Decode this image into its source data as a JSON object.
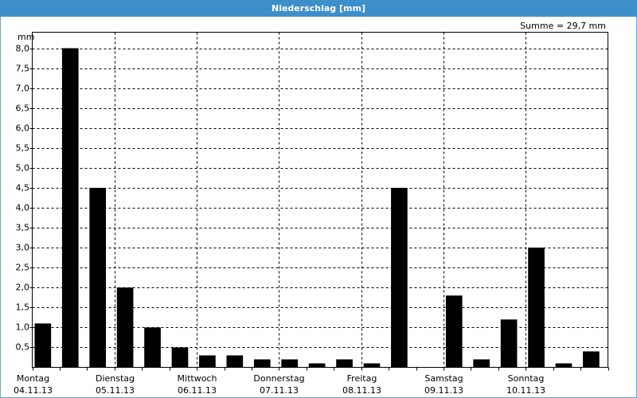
{
  "chart_data": {
    "type": "bar",
    "title": "Niederschlag [mm]",
    "unit_label": "mm",
    "annotation": "Summe = 29,7 mm",
    "days": [
      {
        "name": "Montag",
        "date": "04.11.13"
      },
      {
        "name": "Dienstag",
        "date": "05.11.13"
      },
      {
        "name": "Mittwoch",
        "date": "06.11.13"
      },
      {
        "name": "Donnerstag",
        "date": "07.11.13"
      },
      {
        "name": "Freitag",
        "date": "08.11.13"
      },
      {
        "name": "Samstag",
        "date": "09.11.13"
      },
      {
        "name": "Sonntag",
        "date": "10.11.13"
      }
    ],
    "values": [
      1.1,
      8.0,
      4.5,
      2.0,
      1.0,
      0.5,
      0.3,
      0.3,
      0.2,
      0.2,
      0.1,
      0.2,
      0.1,
      4.5,
      0,
      1.8,
      0.2,
      1.2,
      3.0,
      0.1,
      0.4
    ],
    "color": "#000000",
    "ylim": [
      0,
      8.4
    ],
    "yticks": [
      {
        "value": 0.5,
        "label": "0,5"
      },
      {
        "value": 1.0,
        "label": "1,0"
      },
      {
        "value": 1.5,
        "label": "1,5"
      },
      {
        "value": 2.0,
        "label": "2,0"
      },
      {
        "value": 2.5,
        "label": "2,5"
      },
      {
        "value": 3.0,
        "label": "3,0"
      },
      {
        "value": 3.5,
        "label": "3,5"
      },
      {
        "value": 4.0,
        "label": "4,0"
      },
      {
        "value": 4.5,
        "label": "4,5"
      },
      {
        "value": 5.0,
        "label": "5,0"
      },
      {
        "value": 5.5,
        "label": "5,5"
      },
      {
        "value": 6.0,
        "label": "6,0"
      },
      {
        "value": 6.5,
        "label": "6,5"
      },
      {
        "value": 7.0,
        "label": "7,0"
      },
      {
        "value": 7.5,
        "label": "7,5"
      },
      {
        "value": 8.0,
        "label": "8,0"
      }
    ],
    "grid": true
  }
}
